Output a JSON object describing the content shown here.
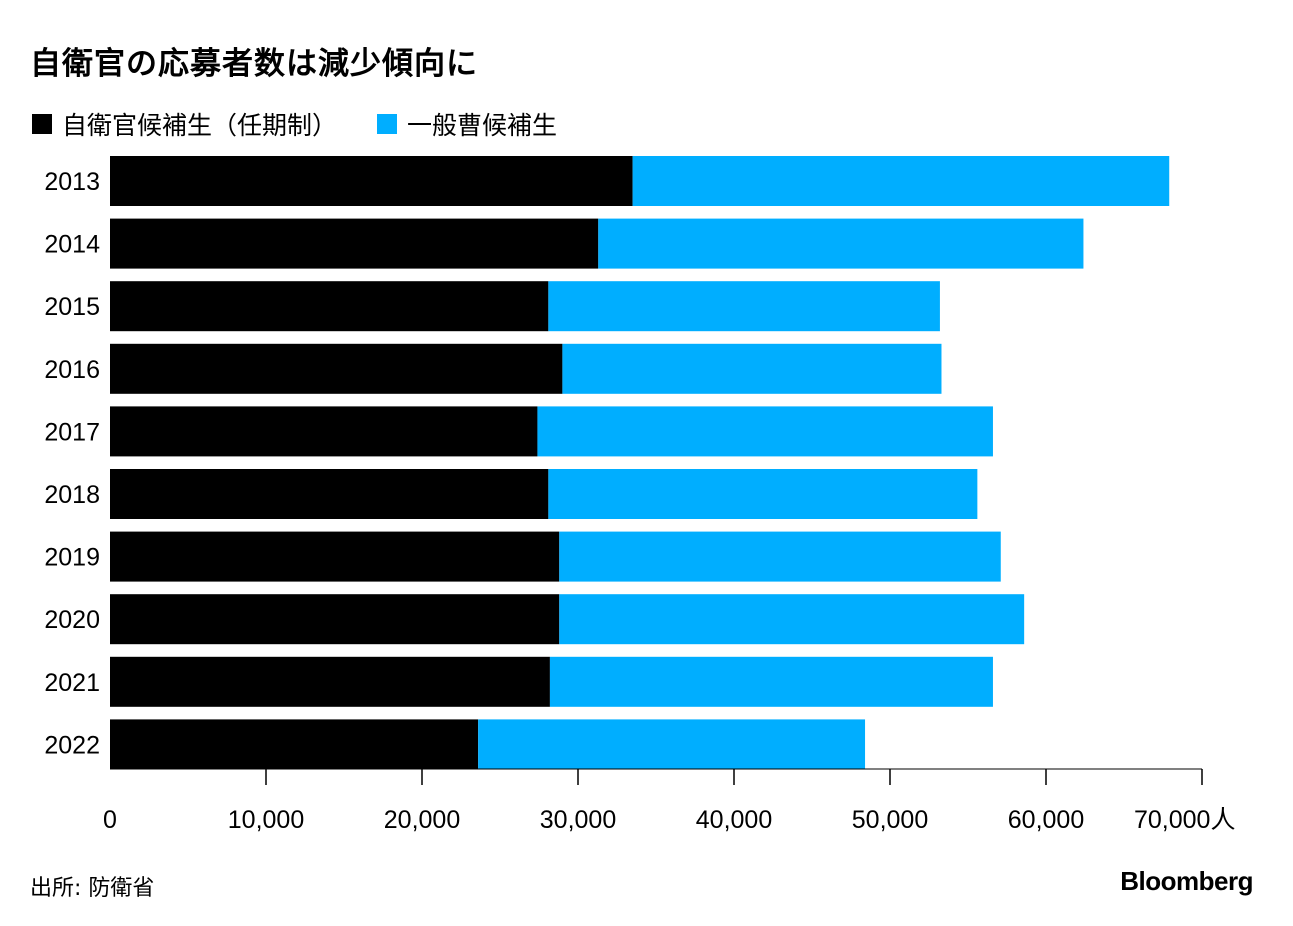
{
  "chart_data": {
    "type": "bar",
    "orientation": "horizontal",
    "stacked": true,
    "title": "自衛官の応募者数は減少傾向に",
    "categories": [
      "2013",
      "2014",
      "2015",
      "2016",
      "2017",
      "2018",
      "2019",
      "2020",
      "2021",
      "2022"
    ],
    "series": [
      {
        "name": "自衛官候補生（任期制）",
        "color": "#000000",
        "values": [
          33500,
          31300,
          28100,
          29000,
          27400,
          28100,
          28800,
          28800,
          28200,
          23600
        ]
      },
      {
        "name": "一般曹候補生",
        "color": "#00aeff",
        "values": [
          34400,
          31100,
          25100,
          24300,
          29200,
          27500,
          28300,
          29800,
          28400,
          24800
        ]
      }
    ],
    "xlim": [
      0,
      70000
    ],
    "xticks": [
      0,
      10000,
      20000,
      30000,
      40000,
      50000,
      60000,
      70000
    ],
    "xtick_labels": [
      "0",
      "10,000",
      "20,000",
      "30,000",
      "40,000",
      "50,000",
      "60,000",
      "70,000人"
    ],
    "xlabel": "",
    "ylabel": "",
    "legend": "top-left",
    "grid": false
  },
  "source": "出所: 防衛省",
  "brand": "Bloomberg"
}
